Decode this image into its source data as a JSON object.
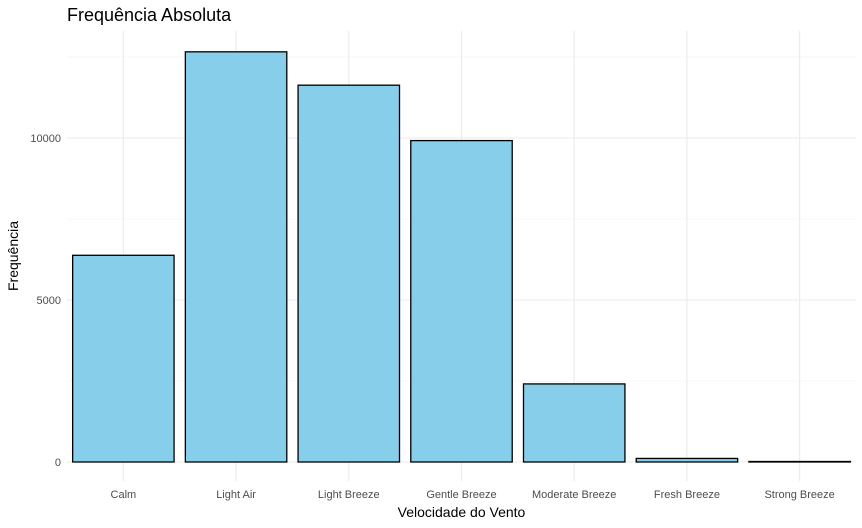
{
  "chart_data": {
    "type": "bar",
    "title": "Frequência Absoluta",
    "xlabel": "Velocidade do Vento",
    "ylabel": "Frequência",
    "categories": [
      "Calm",
      "Light Air",
      "Light Breeze",
      "Gentle Breeze",
      "Moderate Breeze",
      "Fresh Breeze",
      "Strong Breeze"
    ],
    "values": [
      6380,
      12660,
      11630,
      9920,
      2410,
      110,
      15
    ],
    "yticks": [
      0,
      5000,
      10000
    ],
    "ytick_labels": [
      "0",
      "5000",
      "10000"
    ],
    "ylim": [
      -400,
      13300
    ],
    "grid": true,
    "legend": "none",
    "colors": {
      "bar_fill": "#87ceeb",
      "bar_stroke": "#000000",
      "grid_major": "#ebebeb",
      "grid_minor": "#f4f4f4",
      "background": "#ffffff"
    }
  }
}
